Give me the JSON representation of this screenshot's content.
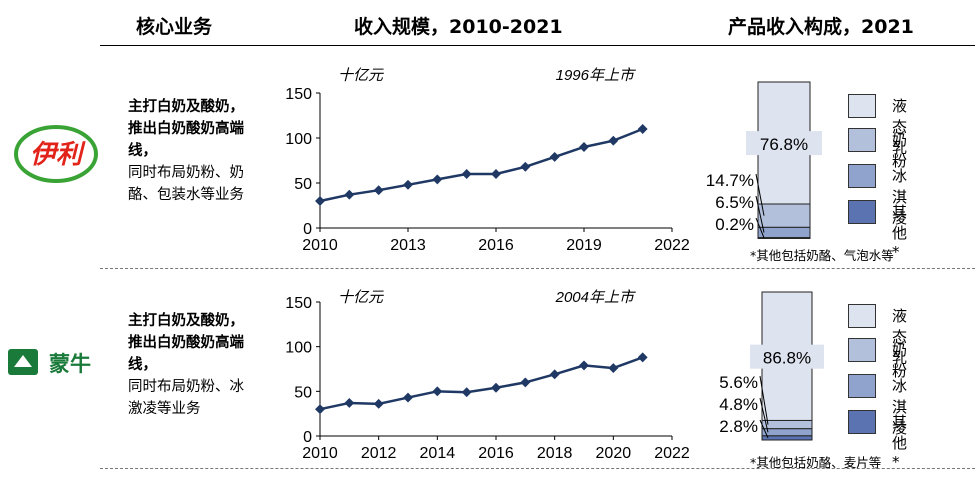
{
  "headers": {
    "business": "核心业务",
    "revenue_scale": "收入规模，2010-2021",
    "composition": "产品收入构成，2021"
  },
  "colors": {
    "line": "#1f3864",
    "liquid_milk": "#dde3ef",
    "milk_powder": "#b3c0dc",
    "ice_cream": "#8fa3cc",
    "other": "#5b73b0",
    "yili_red": "#e2231a",
    "yili_green": "#3aa335",
    "mengniu_green": "#1a7a3a"
  },
  "companies": [
    {
      "logo_text": "伊利",
      "desc_bold": "主打白奶及酸奶，推出白奶酸奶高端线，",
      "desc_normal": "同时布局奶粉、奶酪、包装水等业务",
      "footnote": "*其他包括奶酪、气泡水等"
    },
    {
      "logo_text": "蒙牛",
      "desc_bold": "主打白奶及酸奶，推出白奶酸奶高端线，",
      "desc_normal": "同时布局奶粉、冰激凌等业务",
      "footnote": "*其他包括奶酪、麦片等"
    }
  ],
  "legend": [
    "液态乳",
    "奶粉",
    "冰淇凌",
    "其他*"
  ],
  "chart_data": [
    {
      "type": "line",
      "title": "",
      "unit_label": "十亿元",
      "annotation": "1996年上市",
      "x": [
        2010,
        2011,
        2012,
        2013,
        2014,
        2015,
        2016,
        2017,
        2018,
        2019,
        2020,
        2021
      ],
      "series": [
        {
          "name": "伊利收入",
          "values": [
            30,
            37,
            42,
            48,
            54,
            60,
            60,
            68,
            79,
            90,
            97,
            110
          ]
        }
      ],
      "xlim": [
        2010,
        2022
      ],
      "ylim": [
        0,
        150
      ],
      "xticks": [
        2010,
        2013,
        2016,
        2019,
        2022
      ],
      "yticks": [
        0,
        50,
        100,
        150
      ],
      "xlabel": "",
      "ylabel": ""
    },
    {
      "type": "bar",
      "title": "",
      "stacked": true,
      "categories": [
        "液态乳",
        "奶粉",
        "冰淇凌",
        "其他*"
      ],
      "values": [
        76.8,
        14.7,
        6.5,
        0.2
      ],
      "labels": [
        "76.8%",
        "14.7%",
        "6.5%",
        "0.2%"
      ]
    },
    {
      "type": "line",
      "title": "",
      "unit_label": "十亿元",
      "annotation": "2004年上市",
      "x": [
        2010,
        2011,
        2012,
        2013,
        2014,
        2015,
        2016,
        2017,
        2018,
        2019,
        2020,
        2021
      ],
      "series": [
        {
          "name": "蒙牛收入",
          "values": [
            30,
            37,
            36,
            43,
            50,
            49,
            54,
            60,
            69,
            79,
            76,
            88
          ]
        }
      ],
      "xlim": [
        2010,
        2022
      ],
      "ylim": [
        0,
        150
      ],
      "xticks": [
        2010,
        2012,
        2014,
        2016,
        2018,
        2020,
        2022
      ],
      "yticks": [
        0,
        50,
        100,
        150
      ],
      "xlabel": "",
      "ylabel": ""
    },
    {
      "type": "bar",
      "title": "",
      "stacked": true,
      "categories": [
        "液态乳",
        "奶粉",
        "冰淇凌",
        "其他*"
      ],
      "values": [
        86.8,
        5.6,
        4.8,
        2.8
      ],
      "labels": [
        "86.8%",
        "5.6%",
        "4.8%",
        "2.8%"
      ]
    }
  ]
}
